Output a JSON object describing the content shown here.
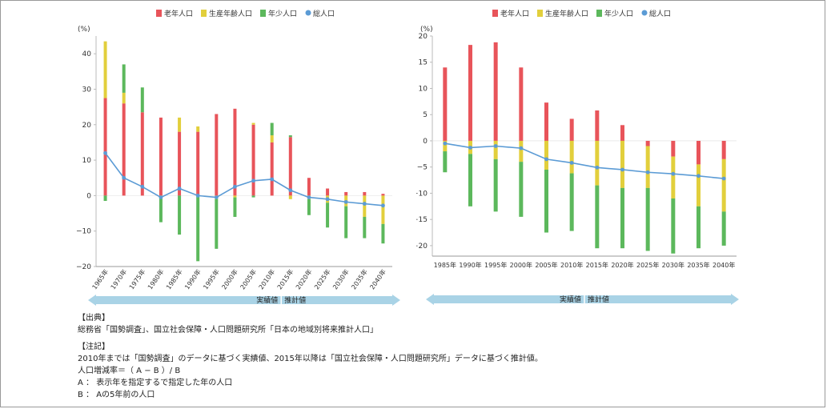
{
  "colors": {
    "elderly": "#e8545a",
    "working": "#e2cf3c",
    "young": "#5cb85c",
    "total": "#5b9bd5",
    "arrow": "#a9d3e6",
    "axis": "#777777"
  },
  "legend": [
    {
      "key": "elderly",
      "label": "老年人口"
    },
    {
      "key": "working",
      "label": "生産年齢人口"
    },
    {
      "key": "young",
      "label": "年少人口"
    },
    {
      "key": "total",
      "label": "総人口"
    }
  ],
  "arrow_labels": {
    "actual": "実績値",
    "projected": "推計値"
  },
  "chart_data": [
    {
      "type": "bar",
      "stacked": true,
      "unit_label": "(%)",
      "ylim": [
        -20,
        45
      ],
      "yticks": [
        -20,
        -10,
        0,
        10,
        20,
        30,
        40
      ],
      "categories": [
        "1965年",
        "1970年",
        "1975年",
        "1980年",
        "1985年",
        "1990年",
        "1995年",
        "2000年",
        "2005年",
        "2010年",
        "2015年",
        "2020年",
        "2025年",
        "2030年",
        "2035年",
        "2040年"
      ],
      "series": [
        {
          "name": "老年人口",
          "key": "elderly",
          "values": [
            27.5,
            26,
            23.5,
            22,
            18,
            18,
            23,
            24.5,
            20,
            15,
            16.5,
            5,
            2,
            1,
            1,
            0.5
          ]
        },
        {
          "name": "生産年齢人口",
          "key": "working",
          "values": [
            16,
            3,
            0,
            -0.5,
            4,
            1.5,
            -1,
            -0.5,
            0.5,
            2,
            -1,
            -1,
            -2,
            -3,
            -6,
            -8
          ]
        },
        {
          "name": "年少人口",
          "key": "young",
          "values": [
            -1.5,
            8,
            7,
            -7,
            -11,
            -18.5,
            -14,
            -5.5,
            -0.5,
            3.5,
            0.5,
            -4.5,
            -7,
            -9,
            -6,
            -5.5
          ]
        }
      ],
      "line": {
        "name": "総人口",
        "key": "total",
        "values": [
          12,
          5,
          2.5,
          -0.5,
          2,
          0,
          -0.5,
          2.5,
          4.2,
          4.6,
          1.5,
          -0.5,
          -1,
          -1.8,
          -2.3,
          -2.8
        ]
      },
      "split_after": "2010年"
    },
    {
      "type": "bar",
      "stacked": true,
      "unit_label": "(%)",
      "ylim": [
        -22,
        20
      ],
      "yticks": [
        -20,
        -15,
        -10,
        -5,
        0,
        5,
        10,
        15,
        20
      ],
      "categories": [
        "1985年",
        "1990年",
        "1995年",
        "2000年",
        "2005年",
        "2010年",
        "2015年",
        "2020年",
        "2025年",
        "2030年",
        "2035年",
        "2040年"
      ],
      "series": [
        {
          "name": "老年人口",
          "key": "elderly",
          "values": [
            14,
            18.3,
            18.8,
            14,
            7.3,
            4.2,
            5.8,
            3,
            -1,
            -3,
            -4.5,
            -3.5
          ]
        },
        {
          "name": "生産年齢人口",
          "key": "working",
          "values": [
            -2,
            -2.5,
            -3.5,
            -4,
            -5.5,
            -6.2,
            -8.5,
            -9,
            -8,
            -8,
            -8,
            -10
          ]
        },
        {
          "name": "年少人口",
          "key": "young",
          "values": [
            -4,
            -10,
            -10,
            -10.5,
            -12,
            -11,
            -12,
            -11.5,
            -12,
            -10.5,
            -8,
            -6.5
          ]
        }
      ],
      "line": {
        "name": "総人口",
        "key": "total",
        "values": [
          -0.5,
          -1.3,
          -1,
          -1.4,
          -3.5,
          -4.2,
          -5.1,
          -5.5,
          -6,
          -6.3,
          -6.7,
          -7.2
        ]
      },
      "split_after": "2010年"
    }
  ],
  "notes": {
    "source_heading": "【出典】",
    "source_text": "総務省「国勢調査」、国立社会保障・人口問題研究所「日本の地域別将来推計人口」",
    "notes_heading": "【注記】",
    "note_1": "2010年までは「国勢調査」のデータに基づく実績値、2015年以降は「国立社会保障・人口問題研究所」データに基づく推計値。",
    "note_2": "人口増減率＝（ A − B ）/ B",
    "note_3": "A ： 表示年を指定するで指定した年の人口",
    "note_4": "B ： Aの5年前の人口"
  }
}
